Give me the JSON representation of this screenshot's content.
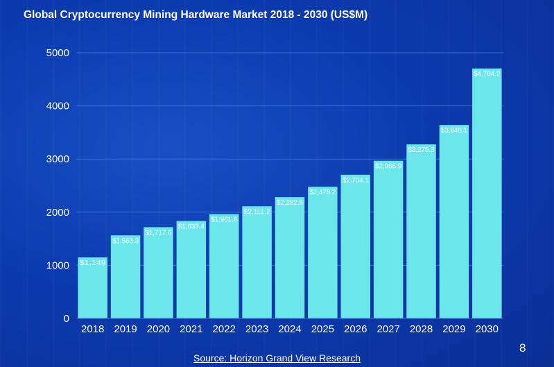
{
  "chart_data": {
    "type": "bar",
    "title": "Global Cryptocurrency Mining Hardware Market 2018 - 2030 (US$M)",
    "categories": [
      "2018",
      "2019",
      "2020",
      "2021",
      "2022",
      "2023",
      "2024",
      "2025",
      "2026",
      "2027",
      "2028",
      "2029",
      "2030"
    ],
    "values": [
      1149,
      1563.3,
      1717.6,
      1833.4,
      1961.6,
      2111.2,
      2282.6,
      2478.2,
      2704.1,
      2966.9,
      3275.3,
      3640.1,
      4704.2
    ],
    "data_labels": [
      "$1,149",
      "$1,563.3",
      "$1,717.6",
      "$1,833.4",
      "$1,961.6",
      "$2,111.2",
      "$2,282.6",
      "$2,478.2",
      "$2,704.1",
      "$2,966.9",
      "$3,275.3",
      "$3,640.1",
      "$4,704.2"
    ],
    "y_ticks": [
      "0",
      "1000",
      "2000",
      "3000",
      "4000",
      "5000"
    ],
    "ylim": [
      0,
      5000
    ],
    "grid": true,
    "bar_color": "#6be6ea",
    "grid_color": "#3f6fd6",
    "background_color": "#0c3bb0"
  },
  "footer": {
    "source": "Source: Horizon Grand View Research",
    "page_number": "8"
  }
}
